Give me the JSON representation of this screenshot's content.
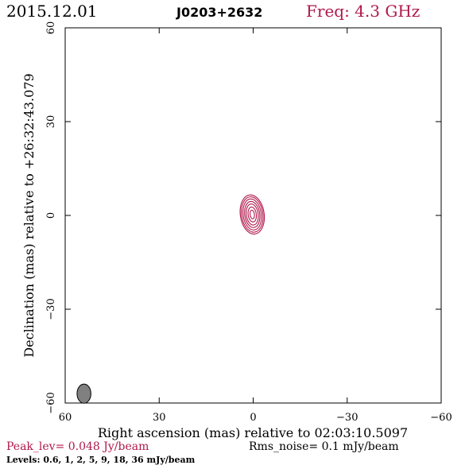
{
  "header": {
    "date": "2015.12.01",
    "source": "J0203+2632",
    "frequency": "Freq: 4.3 GHz"
  },
  "footer": {
    "peak": "Peak_lev=  0.048 Jy/beam",
    "rms": "Rms_noise=  0.1 mJy/beam",
    "levels": "Levels: 0.6,   1,   2,   5,   9,  18,  36 mJy/beam"
  },
  "colors": {
    "contour": "#b0184a",
    "beam_fill": "#808080",
    "frame": "#000000"
  },
  "chart_data": {
    "type": "contour",
    "xlabel": "Right ascension (mas) relative to 02:03:10.5097",
    "ylabel": "Declination (mas) relative to +26:32:43.079",
    "xlim": [
      60,
      -60
    ],
    "ylim": [
      -60,
      60
    ],
    "x_ticks": [
      60,
      30,
      0,
      -30,
      -60
    ],
    "y_ticks": [
      -60,
      -30,
      0,
      30,
      60
    ],
    "x_tick_labels": [
      "60",
      "30",
      "0",
      "−30",
      "−60"
    ],
    "y_tick_labels": [
      "−60",
      "−30",
      "0",
      "30",
      "60"
    ],
    "contour_levels_mJy": [
      0.6,
      1,
      2,
      5,
      9,
      18,
      36
    ],
    "peak_Jy_per_beam": 0.048,
    "rms_mJy_per_beam": 0.1,
    "source_center": [
      0.3,
      0.3
    ],
    "contours": [
      {
        "level": 0.6,
        "rx": 3.8,
        "ry": 6.3
      },
      {
        "level": 1,
        "rx": 3.4,
        "ry": 5.7
      },
      {
        "level": 2,
        "rx": 2.9,
        "ry": 5.0
      },
      {
        "level": 5,
        "rx": 2.4,
        "ry": 4.2
      },
      {
        "level": 9,
        "rx": 1.9,
        "ry": 3.4
      },
      {
        "level": 18,
        "rx": 1.3,
        "ry": 2.4
      },
      {
        "level": 36,
        "rx": 0.7,
        "ry": 1.4
      }
    ],
    "beam": {
      "x": 54,
      "y": -57,
      "major": 3.6,
      "minor": 2.4,
      "pa_deg": 0
    }
  }
}
